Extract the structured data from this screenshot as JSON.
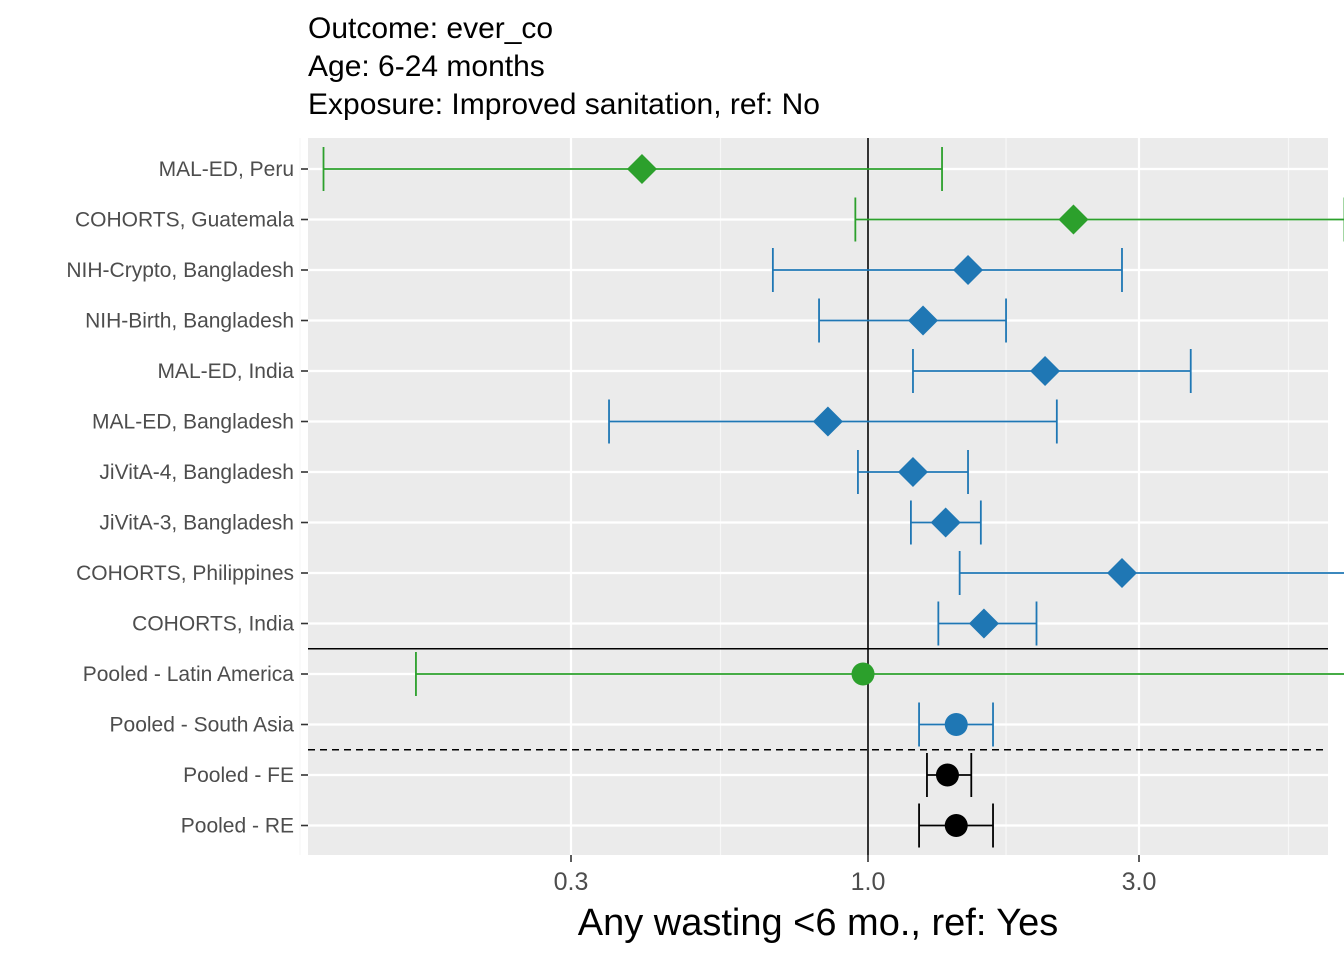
{
  "chart_data": {
    "type": "forest",
    "title_lines": [
      "Outcome: ever_co",
      "Age: 6-24 months",
      "Exposure: Improved sanitation, ref: No"
    ],
    "xlabel": "Any wasting  <6 mo., ref: Yes",
    "x_scale": "log10",
    "xlim": [
      0.09,
      7.0
    ],
    "xticks": [
      0.3,
      1.0,
      3.0
    ],
    "xtick_labels": [
      "0.3",
      "1.0",
      "3.0"
    ],
    "x_minor_gridlines": [
      0.1,
      0.55,
      1.75,
      5.5
    ],
    "reference_line_x": 1.0,
    "group_separators": [
      {
        "after_row": "COHORTS, India",
        "style": "solid"
      },
      {
        "after_row": "Pooled - South Asia",
        "style": "dashed"
      }
    ],
    "colors": {
      "Latin America": "#2ca02c",
      "South Asia": "#1f77b4",
      "Pooled": "#000000"
    },
    "rows": [
      {
        "label": "MAL-ED, Peru",
        "est": 0.4,
        "lower": 0.11,
        "upper": 1.35,
        "region": "Latin America",
        "shape": "diamond"
      },
      {
        "label": "COHORTS, Guatemala",
        "est": 2.3,
        "lower": 0.95,
        "upper": 6.9,
        "region": "Latin America",
        "shape": "diamond"
      },
      {
        "label": "NIH-Crypto, Bangladesh",
        "est": 1.5,
        "lower": 0.68,
        "upper": 2.8,
        "region": "South Asia",
        "shape": "diamond"
      },
      {
        "label": "NIH-Birth, Bangladesh",
        "est": 1.25,
        "lower": 0.82,
        "upper": 1.75,
        "region": "South Asia",
        "shape": "diamond"
      },
      {
        "label": "MAL-ED, India",
        "est": 2.05,
        "lower": 1.2,
        "upper": 3.7,
        "region": "South Asia",
        "shape": "diamond"
      },
      {
        "label": "MAL-ED, Bangladesh",
        "est": 0.85,
        "lower": 0.35,
        "upper": 2.15,
        "region": "South Asia",
        "shape": "diamond"
      },
      {
        "label": "JiVitA-4, Bangladesh",
        "est": 1.2,
        "lower": 0.96,
        "upper": 1.5,
        "region": "South Asia",
        "shape": "diamond"
      },
      {
        "label": "JiVitA-3, Bangladesh",
        "est": 1.37,
        "lower": 1.19,
        "upper": 1.58,
        "region": "South Asia",
        "shape": "diamond"
      },
      {
        "label": "COHORTS, Philippines",
        "est": 2.8,
        "lower": 1.45,
        "upper": 7.0,
        "region": "South Asia",
        "shape": "diamond"
      },
      {
        "label": "COHORTS, India",
        "est": 1.6,
        "lower": 1.33,
        "upper": 1.98,
        "region": "South Asia",
        "shape": "diamond"
      },
      {
        "label": "Pooled - Latin America",
        "est": 0.98,
        "lower": 0.16,
        "upper": 7.0,
        "region": "Latin America",
        "shape": "circle"
      },
      {
        "label": "Pooled - South Asia",
        "est": 1.43,
        "lower": 1.23,
        "upper": 1.66,
        "region": "South Asia",
        "shape": "circle"
      },
      {
        "label": "Pooled - FE",
        "est": 1.38,
        "lower": 1.27,
        "upper": 1.52,
        "region": "Pooled",
        "shape": "circle"
      },
      {
        "label": "Pooled - RE",
        "est": 1.43,
        "lower": 1.23,
        "upper": 1.66,
        "region": "Pooled",
        "shape": "circle"
      }
    ]
  }
}
